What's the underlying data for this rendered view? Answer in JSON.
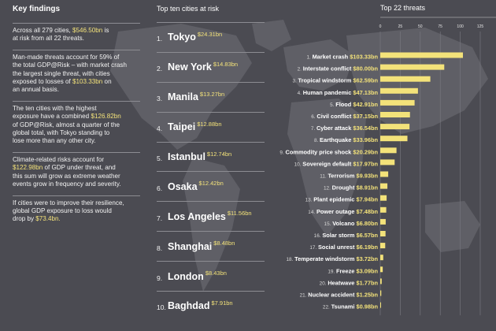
{
  "colors": {
    "background": "#4b4b52",
    "map": "#5f5f66",
    "accent": "#f3e27a",
    "divider": "#8c8c92"
  },
  "findings": {
    "title": "Key findings",
    "items": [
      {
        "lines": [
          [
            {
              "t": "Across all 279 cities, "
            },
            {
              "t": "$546.50bn",
              "h": true
            },
            {
              "t": " is"
            }
          ],
          [
            {
              "t": "at risk from all 22 threats."
            }
          ]
        ]
      },
      {
        "lines": [
          [
            {
              "t": "Man-made threats account for 59% of"
            }
          ],
          [
            {
              "t": "the total GDP@Risk – with market crash"
            }
          ],
          [
            {
              "t": "the largest single threat, with cities"
            }
          ],
          [
            {
              "t": "exposed to losses of "
            },
            {
              "t": "$103.33bn",
              "h": true
            },
            {
              "t": " on"
            }
          ],
          [
            {
              "t": "an annual basis."
            }
          ]
        ]
      },
      {
        "lines": [
          [
            {
              "t": "The ten cities with the highest"
            }
          ],
          [
            {
              "t": "exposure have a combined "
            },
            {
              "t": "$126.82bn",
              "h": true
            }
          ],
          [
            {
              "t": "of GDP@Risk, almost a quarter of the"
            }
          ],
          [
            {
              "t": "global total, with Tokyo standing to"
            }
          ],
          [
            {
              "t": "lose more than any other city."
            }
          ]
        ]
      },
      {
        "lines": [
          [
            {
              "t": "Climate-related risks account for"
            }
          ],
          [
            {
              "t": "$122.98bn",
              "h": true
            },
            {
              "t": " of GDP under threat, and"
            }
          ],
          [
            {
              "t": "this sum will grow as extreme weather"
            }
          ],
          [
            {
              "t": "events grow in frequency and severity."
            }
          ]
        ]
      },
      {
        "lines": [
          [
            {
              "t": "If cities were to improve their resilience,"
            }
          ],
          [
            {
              "t": "global GDP exposure to loss would"
            }
          ],
          [
            {
              "t": "drop by "
            },
            {
              "t": "$73.4bn.",
              "h": true
            }
          ]
        ]
      }
    ]
  },
  "top_cities": {
    "title": "Top ten cities at risk",
    "items": [
      {
        "rank": "1.",
        "name": "Tokyo",
        "value": "$24.31bn"
      },
      {
        "rank": "2.",
        "name": "New York",
        "value": "$14.83bn"
      },
      {
        "rank": "3.",
        "name": "Manila",
        "value": "$13.27bn"
      },
      {
        "rank": "4.",
        "name": "Taipei",
        "value": "$12.88bn"
      },
      {
        "rank": "5.",
        "name": "Istanbul",
        "value": "$12.74bn"
      },
      {
        "rank": "6.",
        "name": "Osaka",
        "value": "$12.42bn"
      },
      {
        "rank": "7.",
        "name": "Los Angeles",
        "value": "$11.56bn"
      },
      {
        "rank": "8.",
        "name": "Shanghai",
        "value": "$8.48bn"
      },
      {
        "rank": "9.",
        "name": "London",
        "value": "$8.43bn"
      },
      {
        "rank": "10.",
        "name": "Baghdad",
        "value": "$7.91bn"
      }
    ]
  },
  "chart_data": {
    "type": "bar",
    "orientation": "horizontal",
    "title": "Top 22 threats",
    "xlim": [
      0,
      125
    ],
    "xticks": [
      0,
      25,
      50,
      75,
      100,
      125
    ],
    "grid": true,
    "bar_color": "#f3e27a",
    "categories": [
      "Market crash",
      "Interstate conflict",
      "Tropical windstorm",
      "Human pandemic",
      "Flood",
      "Civil conflict",
      "Cyber attack",
      "Earthquake",
      "Commodity price shock",
      "Sovereign default",
      "Terrorism",
      "Drought",
      "Plant epidemic",
      "Power outage",
      "Volcano",
      "Solar storm",
      "Social unrest",
      "Temperate windstorm",
      "Freeze",
      "Heatwave",
      "Nuclear accident",
      "Tsunami"
    ],
    "values": [
      103.33,
      80.0,
      62.59,
      47.13,
      42.91,
      37.15,
      36.54,
      33.96,
      20.29,
      17.97,
      9.93,
      8.91,
      7.94,
      7.48,
      6.8,
      6.57,
      6.19,
      3.72,
      3.09,
      1.77,
      1.25,
      0.98
    ],
    "labels": [
      "$103.33bn",
      "$80.00bn",
      "$62.59bn",
      "$47.13bn",
      "$42.91bn",
      "$37.15bn",
      "$36.54bn",
      "$33.96bn",
      "$20.29bn",
      "$17.97bn",
      "$9.93bn",
      "$8.91bn",
      "$7.94bn",
      "$7.48bn",
      "$6.80bn",
      "$6.57bn",
      "$6.19bn",
      "$3.72bn",
      "$3.09bn",
      "$1.77bn",
      "$1.25bn",
      "$0.98bn"
    ],
    "ranks": [
      "1.",
      "2.",
      "3.",
      "4.",
      "5.",
      "6.",
      "7.",
      "8.",
      "9.",
      "10.",
      "11.",
      "12.",
      "13.",
      "14.",
      "15.",
      "16.",
      "17.",
      "18.",
      "19.",
      "20.",
      "21.",
      "22."
    ]
  }
}
